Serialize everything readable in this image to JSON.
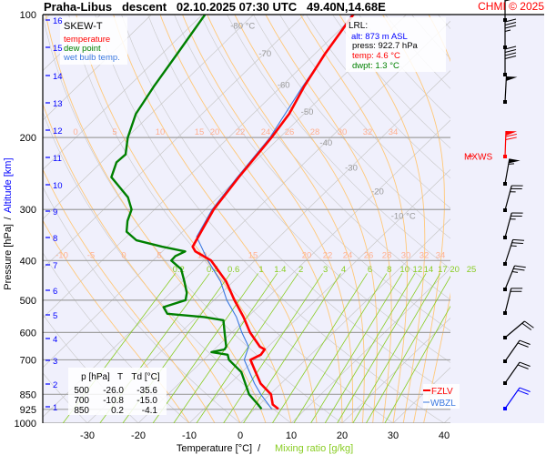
{
  "title": "Praha-Libus   descent   02.10.2025 07:30 UTC   49.40N,14.68E",
  "copyright": "CHMI © 2025",
  "colors": {
    "temperature": "#ff0000",
    "dewpoint": "#008000",
    "wetbulb": "#3a78e0",
    "isotherm": "#c8c8c8",
    "adiabat": "#ffc878",
    "mixing": "#88cc22",
    "pressure": "#a0a0a0",
    "altitude": "#0000ff",
    "background": "#f0f0fc"
  },
  "legend": {
    "title": "SKEW-T",
    "temperature": "temperature",
    "dewpoint": "dew point",
    "wetbulb": "wet bulb temp."
  },
  "lrl": {
    "title": "LRL:",
    "alt": "alt: 873 m ASL",
    "press": "press: 922.7 hPa",
    "temp": "temp: 4.6 °C",
    "dwpt": "dwpt: 1.3 °C"
  },
  "table": {
    "headers": [
      "p [hPa]",
      "T",
      "Td [°C]"
    ],
    "rows": [
      [
        "500",
        "-26.0",
        "-35.6"
      ],
      [
        "700",
        "-10.8",
        "-15.0"
      ],
      [
        "850",
        "0.2",
        "-4.1"
      ]
    ]
  },
  "levels": {
    "mxws": {
      "label": "MXWS",
      "p": 222
    },
    "fzlv": {
      "label": "FZLV",
      "p": 848
    },
    "wbzl": {
      "label": "WBZL",
      "p": 878
    }
  },
  "chart_data": {
    "type": "line",
    "title": "Praha-Libus descent 02.10.2025 07:30 UTC",
    "subtitle": "SKEW-T",
    "xlabel": "Temperature [°C]",
    "xlabel2": "Mixing ratio [g/kg]",
    "ylabel": "Pressure [hPa]",
    "ylabel2": "Altitude [km]",
    "ylabel_sep": "/",
    "xlabel_sep": "/",
    "xlim": [
      -40,
      50
    ],
    "ylim": [
      1000,
      100
    ],
    "x_ticks": [
      "-30",
      "-20",
      "-10",
      "0",
      "10",
      "20",
      "30",
      "40"
    ],
    "x_tick_values": [
      -30,
      -20,
      -10,
      0,
      10,
      20,
      30,
      40
    ],
    "p_ticks": [
      "100",
      "200",
      "300",
      "400",
      "500",
      "600",
      "700",
      "850",
      "925",
      "1000"
    ],
    "p_tick_values": [
      100,
      200,
      300,
      400,
      500,
      600,
      700,
      850,
      925,
      1000
    ],
    "alt_ticks": [
      "1",
      "2",
      "3",
      "4",
      "5",
      "6",
      "7",
      "8",
      "9",
      "10",
      "11",
      "12",
      "13",
      "14",
      "15",
      "16"
    ],
    "alt_tick_pressures": [
      920,
      895,
      820,
      750,
      678,
      610,
      550,
      490,
      440,
      390,
      345,
      305,
      268,
      235,
      205,
      180
    ],
    "isotherm_labels": [
      {
        "t": -80,
        "text": "-80 °C",
        "p": 106
      },
      {
        "t": -70,
        "text": "-70",
        "p": 124
      },
      {
        "t": -60,
        "text": "-60",
        "p": 148
      },
      {
        "t": -50,
        "text": "-50",
        "p": 172
      },
      {
        "t": -40,
        "text": "-40",
        "p": 205
      },
      {
        "t": -30,
        "text": "-30",
        "p": 236
      },
      {
        "t": -20,
        "text": "-20",
        "p": 270
      },
      {
        "t": -10,
        "text": "-10 °C",
        "p": 310
      }
    ],
    "adiabat_labels_200": [
      "0",
      "5",
      "10",
      "15",
      "20",
      "22",
      "24",
      "26",
      "28",
      "30",
      "32",
      "34"
    ],
    "adiabat_labels_400": [
      "-10",
      "-5",
      "0",
      "5",
      "10",
      "15",
      "20",
      "22",
      "24",
      "26",
      "28",
      "30",
      "32",
      "34"
    ],
    "mixing_ratios": [
      0.2,
      0.4,
      0.6,
      1,
      1.4,
      2,
      3,
      4,
      6,
      8,
      10,
      12,
      14,
      17,
      20,
      25
    ],
    "mixing_labels": [
      "0.2",
      "0.4",
      "0.6",
      "1",
      "1.4",
      "2",
      "3",
      "4",
      "6",
      "8",
      "10",
      "12",
      "14",
      "17",
      "20",
      "25"
    ],
    "series": [
      {
        "name": "temperature",
        "p": [
          923,
          900,
          850,
          800,
          750,
          700,
          680,
          660,
          650,
          600,
          550,
          500,
          450,
          400,
          380,
          370,
          350,
          300,
          250,
          200,
          175,
          150,
          125,
          100
        ],
        "t": [
          4.6,
          2.6,
          0.2,
          -4.0,
          -7.3,
          -10.8,
          -9.8,
          -10.1,
          -11.6,
          -16.4,
          -20.8,
          -26.0,
          -31.4,
          -38.6,
          -43.5,
          -45.0,
          -45.9,
          -48.4,
          -50.0,
          -51.6,
          -52.9,
          -55.5,
          -58.0,
          -60.4
        ]
      },
      {
        "name": "dewpoint",
        "p": [
          923,
          900,
          850,
          800,
          750,
          700,
          680,
          670,
          660,
          650,
          600,
          560,
          550,
          540,
          520,
          500,
          480,
          450,
          420,
          400,
          390,
          380,
          370,
          357,
          340,
          320,
          300,
          280,
          250,
          230,
          220,
          200,
          175,
          150,
          125,
          100
        ],
        "t": [
          1.3,
          -0.3,
          -4.1,
          -7.0,
          -10.1,
          -15.0,
          -16.3,
          -20.0,
          -18.0,
          -18.2,
          -21.4,
          -24.1,
          -28.5,
          -36.4,
          -38.5,
          -35.6,
          -36.8,
          -39.6,
          -42.7,
          -46.4,
          -46.5,
          -45.5,
          -51.0,
          -57.3,
          -61.0,
          -63.0,
          -64.5,
          -67.7,
          -75.0,
          -77.0,
          -76.8,
          -79.8,
          -83.0,
          -85.0,
          -87.0,
          -89.5
        ]
      },
      {
        "name": "wet bulb temp.",
        "p": [
          923,
          850,
          800,
          750,
          700,
          650,
          600,
          550,
          500,
          450,
          400,
          350,
          300,
          250,
          200,
          150,
          100
        ],
        "t": [
          3.3,
          -1.8,
          -5.2,
          -8.5,
          -12.0,
          -13.8,
          -18.0,
          -22.2,
          -27.5,
          -32.5,
          -39.2,
          -46.2,
          -48.7,
          -50.3,
          -51.9,
          -55.8,
          -60.7
        ]
      }
    ],
    "winds_kt": [
      {
        "p": 103,
        "dir": 0,
        "spd": 30
      },
      {
        "p": 120,
        "dir": 0,
        "spd": 35
      },
      {
        "p": 140,
        "dir": 0,
        "spd": 40
      },
      {
        "p": 164,
        "dir": 3,
        "spd": 50
      },
      {
        "p": 222,
        "dir": 2,
        "spd": 70,
        "max": true
      },
      {
        "p": 259,
        "dir": 10,
        "spd": 55
      },
      {
        "p": 301,
        "dir": 15,
        "spd": 25
      },
      {
        "p": 351,
        "dir": 15,
        "spd": 25
      },
      {
        "p": 408,
        "dir": 18,
        "spd": 25
      },
      {
        "p": 470,
        "dir": 22,
        "spd": 25
      },
      {
        "p": 538,
        "dir": 14,
        "spd": 20
      },
      {
        "p": 620,
        "dir": 50,
        "spd": 20
      },
      {
        "p": 706,
        "dir": 35,
        "spd": 20
      },
      {
        "p": 800,
        "dir": 35,
        "spd": 20
      },
      {
        "p": 922,
        "dir": 35,
        "spd": 20,
        "surface": true
      }
    ]
  }
}
